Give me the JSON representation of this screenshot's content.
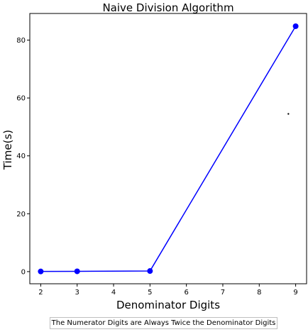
{
  "chart_data": {
    "type": "line",
    "title": "Naive Division Algorithm",
    "xlabel": "Denominator Digits",
    "ylabel": "Time(s)",
    "x": [
      2,
      3,
      5,
      9
    ],
    "series": [
      {
        "values": [
          0.05,
          0.1,
          0.2,
          84.8
        ],
        "color": "#0000ff",
        "marker": "circle"
      }
    ],
    "xlim": [
      1.7,
      9.3
    ],
    "ylim": [
      -4.2,
      89.2
    ],
    "xticks": [
      2,
      3,
      4,
      5,
      6,
      7,
      8,
      9
    ],
    "yticks": [
      0,
      20,
      40,
      60,
      80
    ],
    "stray_point": {
      "x": 8.8,
      "y": 54.5
    },
    "grid": false
  },
  "caption": "The Numerator Digits are Always Twice the Denominator Digits"
}
